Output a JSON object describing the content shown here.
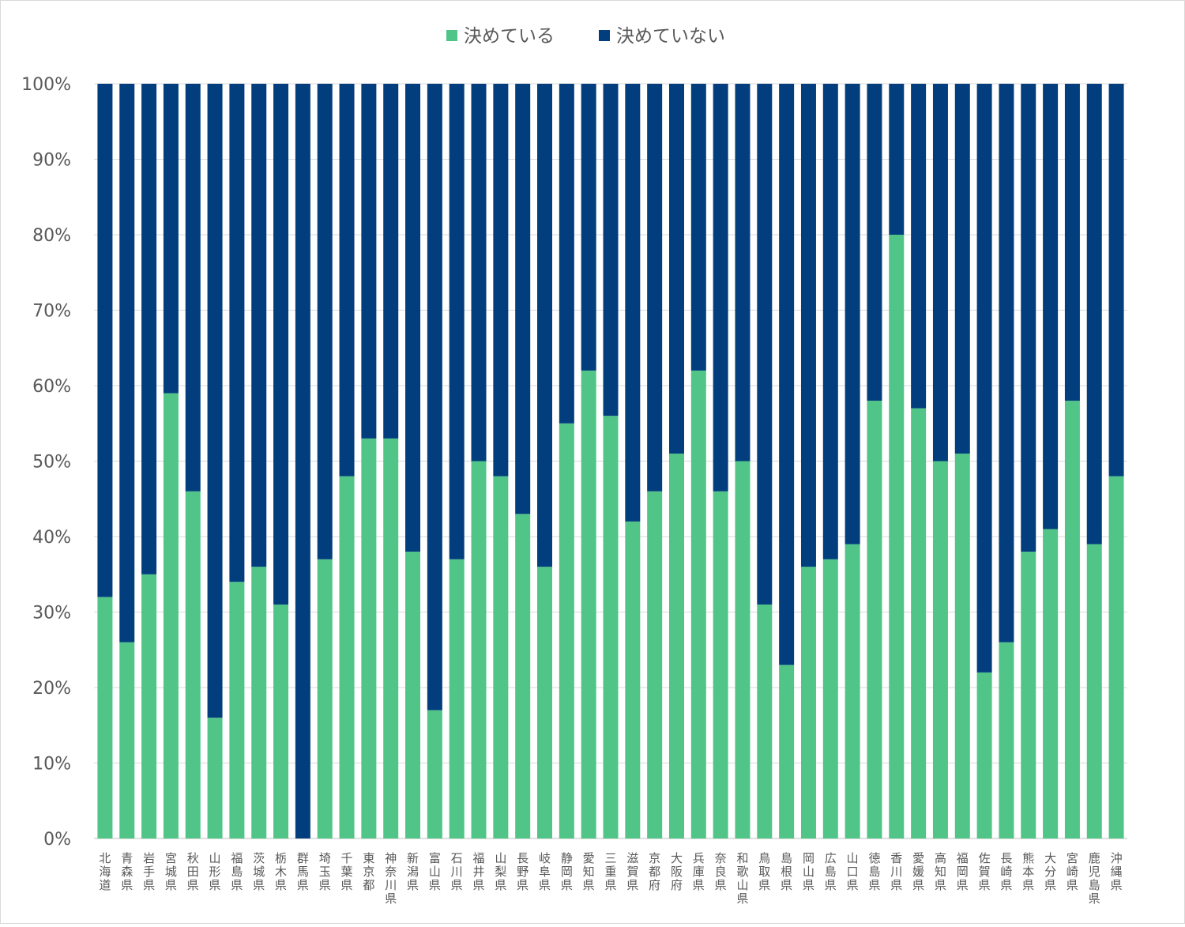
{
  "chart_data": {
    "type": "bar",
    "stacked": true,
    "percent": true,
    "title": "",
    "xlabel": "",
    "ylabel": "",
    "ylim": [
      0,
      100
    ],
    "y_ticks": [
      "0%",
      "10%",
      "20%",
      "30%",
      "40%",
      "50%",
      "60%",
      "70%",
      "80%",
      "90%",
      "100%"
    ],
    "grid": true,
    "legend_position": "top-center",
    "categories": [
      "北海道",
      "青森県",
      "岩手県",
      "宮城県",
      "秋田県",
      "山形県",
      "福島県",
      "茨城県",
      "栃木県",
      "群馬県",
      "埼玉県",
      "千葉県",
      "東京都",
      "神奈川県",
      "新潟県",
      "富山県",
      "石川県",
      "福井県",
      "山梨県",
      "長野県",
      "岐阜県",
      "静岡県",
      "愛知県",
      "三重県",
      "滋賀県",
      "京都府",
      "大阪府",
      "兵庫県",
      "奈良県",
      "和歌山県",
      "鳥取県",
      "島根県",
      "岡山県",
      "広島県",
      "山口県",
      "徳島県",
      "香川県",
      "愛媛県",
      "高知県",
      "福岡県",
      "佐賀県",
      "長崎県",
      "熊本県",
      "大分県",
      "宮崎県",
      "鹿児島県",
      "沖縄県"
    ],
    "series": [
      {
        "name": "決めている",
        "color": "#50c587",
        "values": [
          32,
          26,
          35,
          59,
          46,
          16,
          34,
          36,
          31,
          0,
          37,
          48,
          53,
          53,
          38,
          17,
          37,
          50,
          48,
          43,
          36,
          55,
          62,
          56,
          42,
          46,
          51,
          62,
          46,
          50,
          31,
          23,
          36,
          37,
          39,
          58,
          80,
          57,
          50,
          51,
          22,
          26,
          38,
          41,
          58,
          39,
          48
        ]
      },
      {
        "name": "決めていない",
        "color": "#023e7d",
        "values": [
          68,
          74,
          65,
          41,
          54,
          84,
          66,
          64,
          69,
          100,
          63,
          52,
          47,
          47,
          62,
          83,
          63,
          50,
          52,
          57,
          64,
          45,
          38,
          44,
          58,
          54,
          49,
          38,
          54,
          50,
          69,
          77,
          64,
          63,
          61,
          42,
          20,
          43,
          50,
          49,
          78,
          74,
          62,
          59,
          42,
          61,
          52
        ]
      }
    ]
  }
}
